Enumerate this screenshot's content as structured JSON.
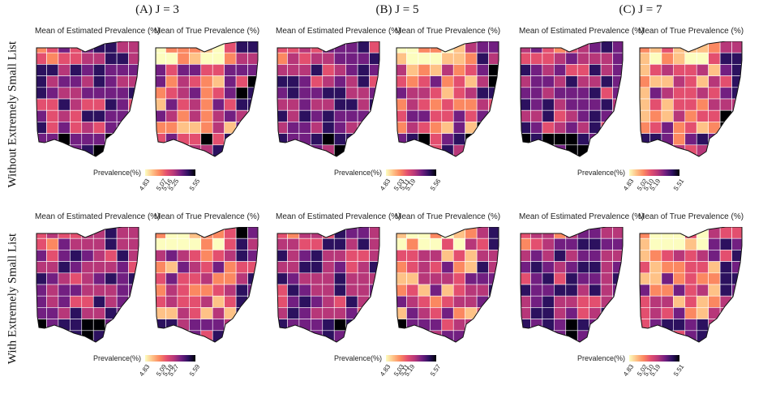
{
  "columns": [
    "(A) J = 3",
    "(B) J = 5",
    "(C) J = 7"
  ],
  "rows": [
    "Without Extremely Small List",
    "With Extremely Small List"
  ],
  "panel_titles": {
    "estimated": "Mean of Estimated Prevalence (%)",
    "true": "Mean of True Prevalence (%)"
  },
  "legend_label": "Prevalence(%)",
  "palette": [
    "#fcfdbf",
    "#fec287",
    "#fb8861",
    "#e34f6f",
    "#b73779",
    "#721f81",
    "#2c115f",
    "#000004"
  ],
  "chart_data": [
    {
      "type": "heatmap",
      "row": "Without Extremely Small List",
      "column": "(A) J = 3",
      "legend_min": 4.83,
      "legend_max": 5.55,
      "ticks": [
        "4.83",
        "5.07",
        "5.16",
        "5.25",
        "5.55"
      ]
    },
    {
      "type": "heatmap",
      "row": "Without Extremely Small List",
      "column": "(B) J = 5",
      "legend_min": 4.83,
      "legend_max": 5.56,
      "ticks": [
        "4.83",
        "5.03",
        "5.11",
        "5.19",
        "5.56"
      ]
    },
    {
      "type": "heatmap",
      "row": "Without Extremely Small List",
      "column": "(C) J = 7",
      "legend_min": 4.83,
      "legend_max": 5.51,
      "ticks": [
        "4.83",
        "5.02",
        "5.10",
        "5.19",
        "5.51"
      ]
    },
    {
      "type": "heatmap",
      "row": "With Extremely Small List",
      "column": "(A) J = 3",
      "legend_min": 4.83,
      "legend_max": 5.59,
      "ticks": [
        "4.83",
        "5.09",
        "5.18",
        "5.27",
        "5.59"
      ]
    },
    {
      "type": "heatmap",
      "row": "With Extremely Small List",
      "column": "(B) J = 5",
      "legend_min": 4.83,
      "legend_max": 5.57,
      "ticks": [
        "4.83",
        "5.03",
        "5.11",
        "5.19",
        "5.57"
      ]
    },
    {
      "type": "heatmap",
      "row": "With Extremely Small List",
      "column": "(C) J = 7",
      "legend_min": 4.83,
      "legend_max": 5.51,
      "ticks": [
        "4.83",
        "5.02",
        "5.10",
        "5.19",
        "5.51"
      ]
    }
  ]
}
